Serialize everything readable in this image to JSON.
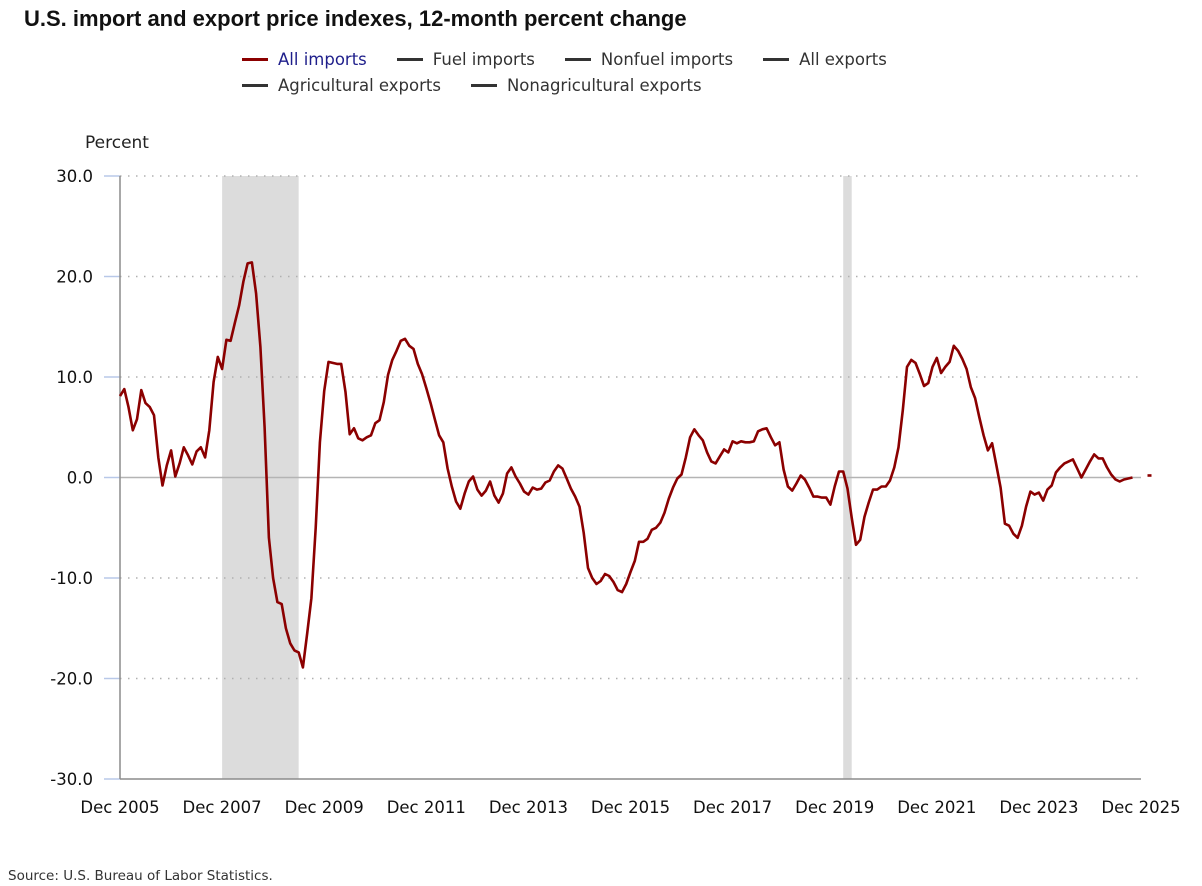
{
  "title": "U.S. import and export price indexes, 12-month percent change",
  "source": "Source: U.S. Bureau of Labor Statistics.",
  "legend": [
    {
      "label": "All imports",
      "color": "#8b0000",
      "active": true
    },
    {
      "label": "Fuel imports",
      "color": "#333333",
      "active": false
    },
    {
      "label": "Nonfuel imports",
      "color": "#333333",
      "active": false
    },
    {
      "label": "All exports",
      "color": "#333333",
      "active": false
    },
    {
      "label": "Agricultural exports",
      "color": "#333333",
      "active": false
    },
    {
      "label": "Nonagricultural exports",
      "color": "#333333",
      "active": false
    }
  ],
  "chart_data": {
    "type": "line",
    "title": "U.S. import and export price indexes, 12-month percent change",
    "xlabel": "",
    "ylabel": "Percent",
    "ylim": [
      -30,
      30
    ],
    "yticks": [
      "30.0",
      "20.0",
      "10.0",
      "0.0",
      "-10.0",
      "-20.0",
      "-30.0"
    ],
    "ytick_values": [
      30,
      20,
      10,
      0,
      -10,
      -20,
      -30
    ],
    "xticks": [
      "Dec 2005",
      "Dec 2007",
      "Dec 2009",
      "Dec 2011",
      "Dec 2013",
      "Dec 2015",
      "Dec 2017",
      "Dec 2019",
      "Dec 2021",
      "Dec 2023",
      "Dec 2025"
    ],
    "x_start": "Dec 2005",
    "x_end": "Dec 2025",
    "grid": "horizontal-dotted",
    "legend_position": "top-center",
    "recessions": [
      {
        "start": "Dec 2007",
        "end": "Jun 2009"
      },
      {
        "start": "Feb 2020",
        "end": "Apr 2020"
      }
    ],
    "colors": {
      "line": "#8b0000",
      "recession": "#dcdcdc",
      "grid": "#b0b0b0",
      "axis": "#8c8c8c",
      "tick_mark": "#b8c8e8"
    },
    "series": [
      {
        "name": "All imports",
        "start": "Dec 2005",
        "frequency": "monthly",
        "values": [
          8.1,
          8.8,
          7.0,
          4.7,
          5.8,
          8.7,
          7.4,
          7.0,
          6.2,
          2.0,
          -0.8,
          1.2,
          2.7,
          0.1,
          1.4,
          3.0,
          2.2,
          1.3,
          2.6,
          3.0,
          2.0,
          4.7,
          9.5,
          12.0,
          10.8,
          13.7,
          13.6,
          15.4,
          17.1,
          19.5,
          21.3,
          21.4,
          18.3,
          13.0,
          5.0,
          -6.0,
          -10.0,
          -12.4,
          -12.6,
          -15.0,
          -16.5,
          -17.2,
          -17.4,
          -18.9,
          -15.5,
          -12.0,
          -5.0,
          3.5,
          8.6,
          11.5,
          11.4,
          11.3,
          11.3,
          8.5,
          4.3,
          4.9,
          3.9,
          3.7,
          4.0,
          4.2,
          5.4,
          5.7,
          7.5,
          10.2,
          11.7,
          12.6,
          13.6,
          13.8,
          13.1,
          12.8,
          11.3,
          10.3,
          8.9,
          7.4,
          5.8,
          4.2,
          3.5,
          0.9,
          -0.9,
          -2.4,
          -3.1,
          -1.6,
          -0.4,
          0.1,
          -1.2,
          -1.8,
          -1.3,
          -0.4,
          -1.8,
          -2.5,
          -1.6,
          0.4,
          1.0,
          0.1,
          -0.6,
          -1.4,
          -1.7,
          -1.0,
          -1.2,
          -1.1,
          -0.5,
          -0.3,
          0.6,
          1.2,
          0.9,
          -0.1,
          -1.1,
          -1.9,
          -2.9,
          -5.5,
          -9.0,
          -10.0,
          -10.6,
          -10.3,
          -9.6,
          -9.8,
          -10.4,
          -11.2,
          -11.4,
          -10.6,
          -9.4,
          -8.3,
          -6.4,
          -6.4,
          -6.1,
          -5.2,
          -5.0,
          -4.5,
          -3.5,
          -2.1,
          -1.0,
          -0.1,
          0.3,
          2.0,
          4.0,
          4.8,
          4.2,
          3.7,
          2.5,
          1.6,
          1.4,
          2.1,
          2.8,
          2.5,
          3.6,
          3.4,
          3.6,
          3.5,
          3.5,
          3.6,
          4.6,
          4.8,
          4.9,
          4.0,
          3.2,
          3.5,
          0.8,
          -0.9,
          -1.3,
          -0.6,
          0.2,
          -0.2,
          -1.0,
          -1.9,
          -1.9,
          -2.0,
          -2.0,
          -2.7,
          -0.9,
          0.6,
          0.6,
          -1.1,
          -4.0,
          -6.7,
          -6.2,
          -3.9,
          -2.5,
          -1.2,
          -1.2,
          -0.9,
          -0.9,
          -0.3,
          1.0,
          3.0,
          6.7,
          11.0,
          11.7,
          11.4,
          10.3,
          9.1,
          9.4,
          11.0,
          11.9,
          10.4,
          11.0,
          11.5,
          13.1,
          12.6,
          11.8,
          10.8,
          9.0,
          7.9,
          6.0,
          4.2,
          2.7,
          3.4,
          1.2,
          -1.0,
          -4.6,
          -4.8,
          -5.6,
          -6.0,
          -4.8,
          -2.9,
          -1.4,
          -1.7,
          -1.5,
          -2.3,
          -1.2,
          -0.8,
          0.5,
          1.0,
          1.4,
          1.6,
          1.8,
          0.9,
          0.0,
          0.8,
          1.6,
          2.3,
          1.9,
          1.9,
          1.0,
          0.3,
          -0.2,
          -0.4,
          -0.2,
          -0.1,
          0.0,
          null,
          null,
          null,
          0.2
        ]
      }
    ]
  }
}
